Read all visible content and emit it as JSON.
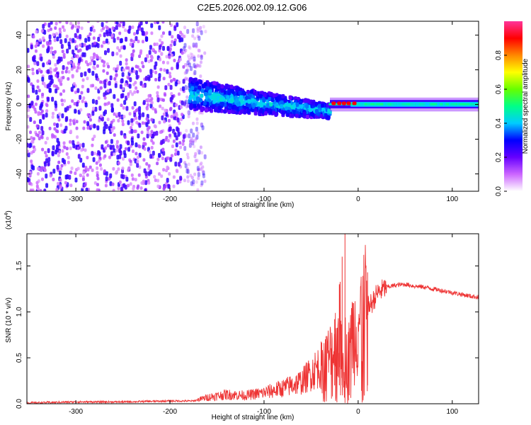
{
  "chart_data": [
    {
      "type": "heatmap",
      "title": "C2E5.2026.002.09.12.G06",
      "xlabel": "Height of straight line (km)",
      "ylabel": "Frequency (Hz)",
      "xlim": [
        -352,
        128
      ],
      "ylim": [
        -50,
        48
      ],
      "xticks": [
        -300,
        -200,
        -100,
        0,
        100
      ],
      "yticks": [
        -40,
        -20,
        0,
        20,
        40
      ],
      "colorbar": {
        "label": "Normalized spectral amplitude",
        "range": [
          0,
          1
        ],
        "ticks": [
          "0.0",
          "0.2",
          "0.4",
          "0.6",
          "0.8"
        ],
        "colors": [
          "#ffffff",
          "#cc66ff",
          "#6600ff",
          "#0000ff",
          "#00ccff",
          "#00ff88",
          "#66ff00",
          "#ffff00",
          "#ff8800",
          "#ff0000",
          "#ff3399"
        ]
      },
      "regions": [
        {
          "name": "noise",
          "x": [
            -352,
            -172
          ],
          "f": [
            -50,
            48
          ],
          "amplitude": 0.1
        },
        {
          "name": "signal-band-wide",
          "x": [
            -180,
            -30
          ],
          "f_center": [
            6,
            -4
          ],
          "f_halfwidth": [
            9,
            4
          ],
          "amplitude": 0.25
        },
        {
          "name": "signal-band-narrow",
          "x": [
            -30,
            128
          ],
          "f_center": [
            0,
            0
          ],
          "f_halfwidth": [
            3,
            2
          ],
          "amplitude": 0.5
        },
        {
          "name": "red-spots",
          "x": [
            -28,
            -3
          ],
          "f": 0.5,
          "amplitude": 0.9
        }
      ]
    },
    {
      "type": "line",
      "xlabel": "Height of straight line (km)",
      "ylabel": "SNR (10 * v/v)",
      "multiplier_base": "(x10",
      "multiplier_exp": "4",
      "multiplier_close": ")",
      "xlim": [
        -352,
        128
      ],
      "ylim": [
        0,
        1.85
      ],
      "xticks": [
        -300,
        -200,
        -100,
        0,
        100
      ],
      "yticks": [
        "0.0",
        "0.5",
        "1.0",
        "1.5"
      ],
      "ytick_values": [
        0,
        0.5,
        1.0,
        1.5
      ],
      "color": "#ee3333",
      "x": [
        -352,
        -300,
        -250,
        -200,
        -175,
        -160,
        -140,
        -120,
        -100,
        -80,
        -60,
        -45,
        -35,
        -28,
        -22,
        -18,
        -15,
        -12,
        -8,
        -3,
        0,
        5,
        10,
        15,
        20,
        30,
        40,
        50,
        60,
        70,
        80,
        90,
        100,
        110,
        120,
        128
      ],
      "y": [
        0.01,
        0.02,
        0.02,
        0.03,
        0.03,
        0.07,
        0.1,
        0.09,
        0.12,
        0.17,
        0.24,
        0.38,
        0.45,
        0.55,
        0.7,
        0.8,
        0.6,
        0.55,
        0.72,
        0.8,
        0.92,
        0.95,
        1.05,
        1.1,
        1.2,
        1.27,
        1.29,
        1.3,
        1.28,
        1.27,
        1.25,
        1.23,
        1.21,
        1.19,
        1.17,
        1.16
      ],
      "spikes": [
        {
          "x": -25,
          "y": 0.92
        },
        {
          "x": -20,
          "y": 1.3
        },
        {
          "x": -17,
          "y": 1.6
        },
        {
          "x": -14,
          "y": 1.85
        },
        {
          "x": 10,
          "y": 1.43
        }
      ]
    }
  ]
}
